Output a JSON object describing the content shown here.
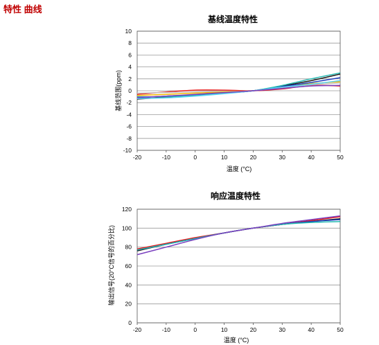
{
  "page": {
    "heading": "特性 曲线"
  },
  "chart_data": [
    {
      "type": "line",
      "title": "基线温度特性",
      "xlabel": "温度 (°C)",
      "ylabel": "基线范围(ppm)",
      "xlim": [
        -20,
        50
      ],
      "ylim": [
        -10,
        10
      ],
      "xticks": [
        -20,
        -10,
        0,
        10,
        20,
        30,
        40,
        50
      ],
      "yticks": [
        10,
        8,
        6,
        4,
        2,
        0,
        -2,
        -4,
        -6,
        -8,
        -10
      ],
      "grid": true,
      "x": [
        -20,
        -10,
        0,
        10,
        20,
        30,
        40,
        50
      ],
      "series": [
        {
          "color": "#e81f1f",
          "values": [
            -0.6,
            -0.2,
            0.1,
            0.1,
            0.0,
            0.3,
            0.9,
            0.8
          ]
        },
        {
          "color": "#c7c7c7",
          "values": [
            -0.4,
            -0.3,
            -0.2,
            -0.1,
            0.0,
            0.5,
            1.0,
            1.3
          ]
        },
        {
          "color": "#f2b600",
          "values": [
            -0.8,
            -0.6,
            -0.4,
            -0.2,
            0.0,
            0.6,
            1.2,
            1.5
          ]
        },
        {
          "color": "#1a1a1a",
          "values": [
            -1.4,
            -1.1,
            -0.8,
            -0.4,
            0.0,
            0.8,
            1.7,
            2.8
          ]
        },
        {
          "color": "#1f3fbf",
          "values": [
            -1.2,
            -0.9,
            -0.7,
            -0.4,
            0.0,
            0.7,
            1.4,
            2.2
          ]
        },
        {
          "color": "#22b8b0",
          "values": [
            -1.0,
            -1.0,
            -0.8,
            -0.4,
            0.0,
            0.9,
            2.0,
            3.0
          ]
        },
        {
          "color": "#5ad2f5",
          "values": [
            -1.3,
            -1.2,
            -0.9,
            -0.5,
            0.0,
            0.6,
            1.1,
            1.7
          ]
        },
        {
          "color": "#7a3fbf",
          "values": [
            -1.1,
            -0.9,
            -0.6,
            -0.3,
            0.0,
            0.4,
            0.8,
            0.9
          ]
        }
      ]
    },
    {
      "type": "line",
      "title": "响应温度特性",
      "xlabel": "温度 (°C)",
      "ylabel": "输出信号(20°C信号的百分比)",
      "xlim": [
        -20,
        50
      ],
      "ylim": [
        0,
        120
      ],
      "xticks": [
        -20,
        -10,
        0,
        10,
        20,
        30,
        40,
        50
      ],
      "yticks": [
        120,
        100,
        80,
        60,
        40,
        20,
        0
      ],
      "grid": true,
      "x": [
        -20,
        -10,
        0,
        10,
        20,
        30,
        40,
        50
      ],
      "series": [
        {
          "color": "#e81f1f",
          "values": [
            78,
            84,
            90,
            95,
            100,
            104,
            108,
            112
          ]
        },
        {
          "color": "#1a1a1a",
          "values": [
            76,
            83,
            89,
            95,
            100,
            104,
            107,
            110
          ]
        },
        {
          "color": "#1f3fbf",
          "values": [
            77,
            83,
            89,
            95,
            100,
            104,
            107,
            109
          ]
        },
        {
          "color": "#22b8b0",
          "values": [
            77,
            83,
            89,
            95,
            100,
            104,
            106,
            107
          ]
        },
        {
          "color": "#7a3fbf",
          "values": [
            72,
            80,
            88,
            95,
            100,
            105,
            109,
            113
          ]
        }
      ]
    }
  ]
}
